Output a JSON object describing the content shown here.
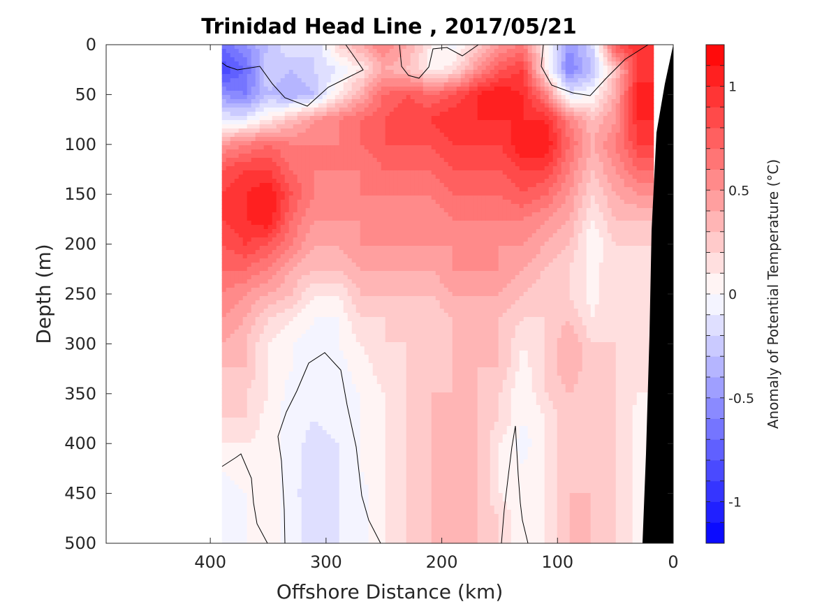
{
  "chart_data": {
    "type": "heatmap",
    "title": "Trinidad Head Line , 2017/05/21",
    "xlabel": "Offshore Distance (km)",
    "ylabel": "Depth (m)",
    "xlim": [
      490,
      0
    ],
    "ylim": [
      0,
      500
    ],
    "x_reversed": true,
    "y_reversed": true,
    "xticks": [
      400,
      300,
      200,
      100,
      0
    ],
    "yticks": [
      0,
      50,
      100,
      150,
      200,
      250,
      300,
      350,
      400,
      450,
      500
    ],
    "colorbar": {
      "label": "Anomaly of Potential Temperature (°C)",
      "range": [
        -1.2,
        1.2
      ],
      "levels": 24,
      "ticks": [
        1,
        0.5,
        0,
        -0.5,
        -1
      ],
      "tick_labels": [
        "1",
        "0.5",
        "0",
        "-0.5",
        "-1"
      ],
      "low_color": "#0000ff",
      "mid_color": "#ffffff",
      "high_color": "#ff0000"
    },
    "x": [
      390,
      370,
      350,
      330,
      310,
      290,
      270,
      250,
      230,
      210,
      190,
      170,
      150,
      130,
      110,
      90,
      70,
      50,
      30
    ],
    "y": [
      0,
      25,
      50,
      75,
      100,
      125,
      150,
      175,
      200,
      225,
      250,
      275,
      300,
      325,
      350,
      375,
      400,
      425,
      450,
      475,
      500
    ],
    "z": [
      [
        -0.7,
        -0.5,
        -0.3,
        -0.1,
        -0.2,
        0.2,
        0.4,
        0.6,
        0.4,
        0.1,
        -0.05,
        0.2,
        0.5,
        0.6,
        0.1,
        -0.5,
        -0.2,
        0.8,
        1.0
      ],
      [
        -0.9,
        -0.7,
        -0.2,
        -0.3,
        -0.2,
        -0.1,
        0.1,
        0.4,
        0.3,
        0.05,
        0.15,
        0.5,
        0.8,
        0.9,
        0.1,
        -0.6,
        -0.3,
        0.3,
        0.9
      ],
      [
        -0.5,
        -0.6,
        -0.3,
        -0.4,
        -0.3,
        0.1,
        0.4,
        0.7,
        0.8,
        0.7,
        0.8,
        1.0,
        1.1,
        1.0,
        0.6,
        -0.1,
        0.0,
        0.4,
        1.1
      ],
      [
        -0.1,
        -0.1,
        0.1,
        0.3,
        0.5,
        0.6,
        0.7,
        0.8,
        0.9,
        0.9,
        1.0,
        1.0,
        1.0,
        1.0,
        1.0,
        0.6,
        0.3,
        0.5,
        1.0
      ],
      [
        0.5,
        0.6,
        0.7,
        0.6,
        0.6,
        0.6,
        0.7,
        0.8,
        0.8,
        0.8,
        0.9,
        0.9,
        0.9,
        1.1,
        1.1,
        0.7,
        0.4,
        0.6,
        0.9
      ],
      [
        0.8,
        0.9,
        0.9,
        0.7,
        0.6,
        0.6,
        0.6,
        0.7,
        0.7,
        0.7,
        0.8,
        0.8,
        0.8,
        0.9,
        0.9,
        0.6,
        0.3,
        0.5,
        0.7
      ],
      [
        0.9,
        1.0,
        1.1,
        0.8,
        0.6,
        0.5,
        0.6,
        0.6,
        0.6,
        0.6,
        0.7,
        0.7,
        0.7,
        0.8,
        0.7,
        0.5,
        0.2,
        0.4,
        0.5
      ],
      [
        0.9,
        1.0,
        1.1,
        0.7,
        0.5,
        0.5,
        0.5,
        0.5,
        0.5,
        0.5,
        0.6,
        0.6,
        0.6,
        0.6,
        0.5,
        0.4,
        0.1,
        0.3,
        0.3
      ],
      [
        0.8,
        0.9,
        0.8,
        0.6,
        0.4,
        0.4,
        0.5,
        0.5,
        0.5,
        0.5,
        0.5,
        0.5,
        0.5,
        0.5,
        0.4,
        0.3,
        0.0,
        0.2,
        0.2
      ],
      [
        0.7,
        0.7,
        0.6,
        0.4,
        0.3,
        0.3,
        0.4,
        0.4,
        0.4,
        0.4,
        0.5,
        0.5,
        0.5,
        0.4,
        0.3,
        0.2,
        0.05,
        0.2,
        0.15
      ],
      [
        0.6,
        0.5,
        0.4,
        0.3,
        0.1,
        0.1,
        0.3,
        0.3,
        0.3,
        0.3,
        0.4,
        0.4,
        0.4,
        0.3,
        0.2,
        0.2,
        0.05,
        0.2,
        0.1
      ],
      [
        0.5,
        0.4,
        0.2,
        0.1,
        0.0,
        0.0,
        0.2,
        0.2,
        0.2,
        0.2,
        0.3,
        0.3,
        0.3,
        0.2,
        0.2,
        0.3,
        0.1,
        0.2,
        0.1
      ],
      [
        0.4,
        0.3,
        0.1,
        0.0,
        -0.05,
        0.0,
        0.1,
        0.2,
        0.2,
        0.2,
        0.3,
        0.3,
        0.3,
        0.1,
        0.2,
        0.4,
        0.2,
        0.2,
        0.1
      ],
      [
        0.3,
        0.3,
        0.1,
        0.0,
        -0.1,
        -0.05,
        0.05,
        0.15,
        0.2,
        0.2,
        0.3,
        0.3,
        0.3,
        0.05,
        0.2,
        0.4,
        0.2,
        0.2,
        0.1
      ],
      [
        0.3,
        0.2,
        0.1,
        -0.05,
        -0.1,
        -0.05,
        0.0,
        0.1,
        0.2,
        0.3,
        0.3,
        0.3,
        0.2,
        0.0,
        0.2,
        0.3,
        0.2,
        0.2,
        0.1
      ],
      [
        0.2,
        0.2,
        0.05,
        -0.05,
        -0.1,
        -0.05,
        0.0,
        0.1,
        0.2,
        0.3,
        0.3,
        0.3,
        0.2,
        0.0,
        0.1,
        0.3,
        0.2,
        0.2,
        0.05
      ],
      [
        0.1,
        0.1,
        0.05,
        -0.05,
        -0.15,
        -0.1,
        0.0,
        0.1,
        0.2,
        0.3,
        0.3,
        0.3,
        0.1,
        -0.05,
        0.1,
        0.3,
        0.2,
        0.2,
        0.05
      ],
      [
        0.0,
        0.05,
        0.05,
        -0.05,
        -0.15,
        -0.1,
        0.0,
        0.1,
        0.2,
        0.3,
        0.3,
        0.3,
        0.1,
        0.0,
        0.1,
        0.3,
        0.2,
        0.2,
        0.05
      ],
      [
        -0.05,
        0.0,
        0.05,
        -0.05,
        -0.2,
        -0.1,
        -0.05,
        0.1,
        0.2,
        0.3,
        0.3,
        0.3,
        0.1,
        0.0,
        0.1,
        0.3,
        0.3,
        0.2,
        0.05
      ],
      [
        -0.05,
        0.0,
        0.05,
        -0.05,
        -0.15,
        -0.1,
        -0.05,
        0.1,
        0.2,
        0.3,
        0.3,
        0.3,
        0.2,
        0.0,
        0.1,
        0.3,
        0.3,
        0.2,
        0.05
      ],
      [
        -0.1,
        0.0,
        0.05,
        -0.05,
        -0.15,
        -0.1,
        -0.05,
        0.1,
        0.2,
        0.3,
        0.3,
        0.3,
        0.2,
        0.0,
        0.1,
        0.3,
        0.3,
        0.2,
        0.05
      ]
    ],
    "zero_contours": [
      [
        [
          318,
          90
        ],
        [
          325,
          95
        ],
        [
          340,
          100
        ],
        [
          372,
          95
        ],
        [
          390,
          120
        ],
        [
          408,
          140
        ],
        [
          440,
          152
        ],
        [
          470,
          125
        ],
        [
          500,
          110
        ],
        [
          520,
          100
        ],
        [
          505,
          78
        ],
        [
          495,
          64
        ]
      ],
      [
        [
          572,
          64
        ],
        [
          575,
          95
        ],
        [
          585,
          108
        ],
        [
          600,
          112
        ],
        [
          614,
          96
        ],
        [
          620,
          70
        ],
        [
          640,
          68
        ],
        [
          662,
          80
        ],
        [
          685,
          64
        ]
      ],
      [
        [
          778,
          64
        ],
        [
          775,
          95
        ],
        [
          790,
          122
        ],
        [
          820,
          133
        ],
        [
          845,
          137
        ],
        [
          868,
          112
        ],
        [
          895,
          85
        ],
        [
          928,
          64
        ]
      ],
      [
        [
          318,
          668
        ],
        [
          338,
          655
        ],
        [
          345,
          650
        ],
        [
          360,
          685
        ],
        [
          363,
          720
        ],
        [
          368,
          750
        ],
        [
          383,
          778
        ]
      ],
      [
        [
          408,
          778
        ],
        [
          407,
          730
        ],
        [
          403,
          660
        ],
        [
          398,
          625
        ],
        [
          410,
          590
        ],
        [
          425,
          560
        ],
        [
          442,
          520
        ],
        [
          465,
          505
        ],
        [
          488,
          530
        ],
        [
          497,
          580
        ],
        [
          510,
          640
        ],
        [
          518,
          710
        ],
        [
          528,
          745
        ],
        [
          545,
          778
        ]
      ],
      [
        [
          718,
          778
        ],
        [
          722,
          730
        ],
        [
          728,
          680
        ],
        [
          733,
          640
        ],
        [
          738,
          610
        ],
        [
          742,
          680
        ],
        [
          745,
          720
        ],
        [
          748,
          745
        ],
        [
          756,
          778
        ]
      ]
    ],
    "land_polygon": [
      [
        964,
        64
      ],
      [
        952,
        120
      ],
      [
        940,
        190
      ],
      [
        933,
        330
      ],
      [
        930,
        480
      ],
      [
        925,
        650
      ],
      [
        920,
        778
      ],
      [
        964,
        778
      ]
    ]
  }
}
